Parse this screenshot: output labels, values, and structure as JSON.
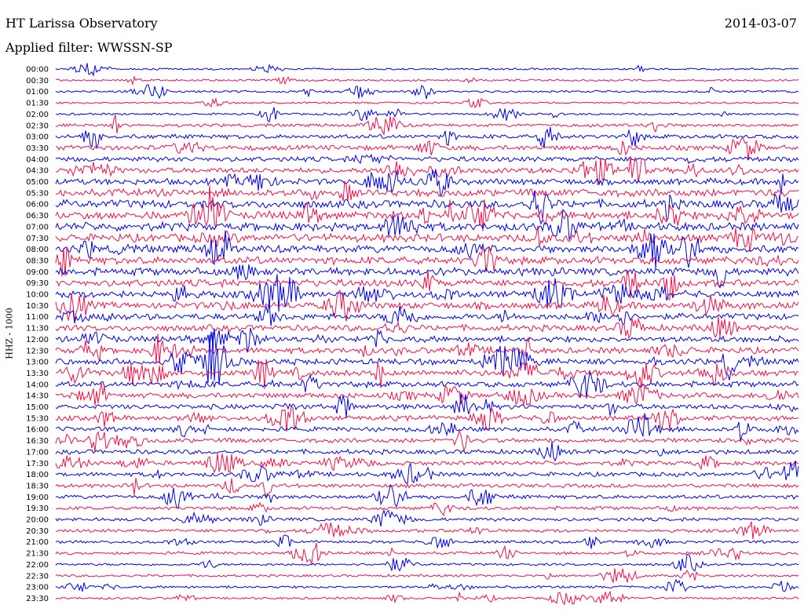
{
  "header": {
    "station": "HT Larissa Observatory",
    "date": "2014-03-07",
    "filter_label": "Applied filter: WWSSN-SP"
  },
  "chart_data": {
    "type": "line",
    "title": "HT Larissa Observatory",
    "subtitle": "Applied filter: WWSSN-SP",
    "ylabel": "HHZ - 1000",
    "xlabel": "",
    "colors": [
      "#0000e0",
      "#f0104a"
    ],
    "grid": false,
    "legend": "none",
    "y_tick_labels": [
      "00:00",
      "00:30",
      "01:00",
      "01:30",
      "02:00",
      "02:30",
      "03:00",
      "03:30",
      "04:00",
      "04:30",
      "05:00",
      "05:30",
      "06:00",
      "06:30",
      "07:00",
      "07:30",
      "08:00",
      "08:30",
      "09:00",
      "09:30",
      "10:00",
      "10:30",
      "11:00",
      "11:30",
      "12:00",
      "12:30",
      "13:00",
      "13:30",
      "14:00",
      "14:30",
      "15:00",
      "15:30",
      "16:00",
      "16:30",
      "17:00",
      "17:30",
      "18:00",
      "18:30",
      "19:00",
      "19:30",
      "20:00",
      "20:30",
      "21:00",
      "21:30",
      "22:00",
      "22:30",
      "23:00",
      "23:30"
    ],
    "series": [
      {
        "start": "00:00",
        "amplitude": 0.12
      },
      {
        "start": "00:30",
        "amplitude": 0.15
      },
      {
        "start": "01:00",
        "amplitude": 0.15
      },
      {
        "start": "01:30",
        "amplitude": 0.13
      },
      {
        "start": "02:00",
        "amplitude": 0.15
      },
      {
        "start": "02:30",
        "amplitude": 0.3
      },
      {
        "start": "03:00",
        "amplitude": 0.45
      },
      {
        "start": "03:30",
        "amplitude": 0.55
      },
      {
        "start": "04:00",
        "amplitude": 0.55
      },
      {
        "start": "04:30",
        "amplitude": 0.6
      },
      {
        "start": "05:00",
        "amplitude": 0.7
      },
      {
        "start": "05:30",
        "amplitude": 0.9
      },
      {
        "start": "06:00",
        "amplitude": 1.0
      },
      {
        "start": "06:30",
        "amplitude": 1.0
      },
      {
        "start": "07:00",
        "amplitude": 1.0
      },
      {
        "start": "07:30",
        "amplitude": 0.95
      },
      {
        "start": "08:00",
        "amplitude": 0.9
      },
      {
        "start": "08:30",
        "amplitude": 0.9
      },
      {
        "start": "09:00",
        "amplitude": 0.9
      },
      {
        "start": "09:30",
        "amplitude": 0.85
      },
      {
        "start": "10:00",
        "amplitude": 0.8
      },
      {
        "start": "10:30",
        "amplitude": 0.8
      },
      {
        "start": "11:00",
        "amplitude": 0.75
      },
      {
        "start": "11:30",
        "amplitude": 0.7
      },
      {
        "start": "12:00",
        "amplitude": 0.7
      },
      {
        "start": "12:30",
        "amplitude": 0.7
      },
      {
        "start": "13:00",
        "amplitude": 0.7
      },
      {
        "start": "13:30",
        "amplitude": 0.7
      },
      {
        "start": "14:00",
        "amplitude": 0.65
      },
      {
        "start": "14:30",
        "amplitude": 0.6
      },
      {
        "start": "15:00",
        "amplitude": 0.55
      },
      {
        "start": "15:30",
        "amplitude": 0.55
      },
      {
        "start": "16:00",
        "amplitude": 0.5
      },
      {
        "start": "16:30",
        "amplitude": 0.5
      },
      {
        "start": "17:00",
        "amplitude": 0.5
      },
      {
        "start": "17:30",
        "amplitude": 0.45
      },
      {
        "start": "18:00",
        "amplitude": 0.45
      },
      {
        "start": "18:30",
        "amplitude": 0.4
      },
      {
        "start": "19:00",
        "amplitude": 0.4
      },
      {
        "start": "19:30",
        "amplitude": 0.35
      },
      {
        "start": "20:00",
        "amplitude": 0.35
      },
      {
        "start": "20:30",
        "amplitude": 0.3
      },
      {
        "start": "21:00",
        "amplitude": 0.25
      },
      {
        "start": "21:30",
        "amplitude": 0.25
      },
      {
        "start": "22:00",
        "amplitude": 0.2
      },
      {
        "start": "22:30",
        "amplitude": 0.2
      },
      {
        "start": "23:00",
        "amplitude": 0.2
      },
      {
        "start": "23:30",
        "amplitude": 0.15
      }
    ]
  }
}
